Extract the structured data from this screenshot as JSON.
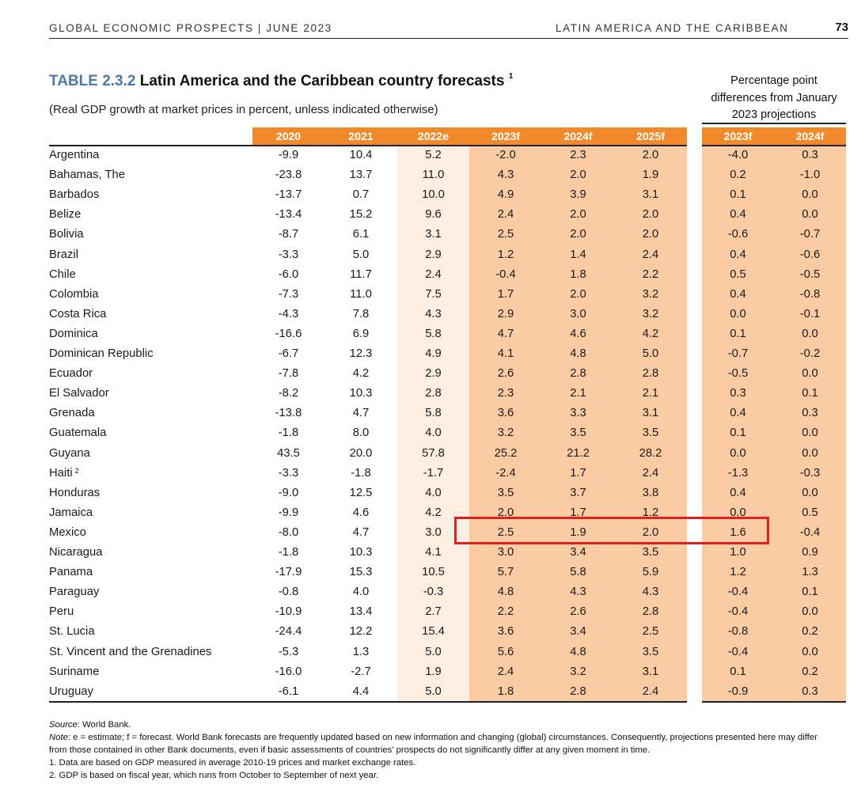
{
  "header": {
    "left": "GLOBAL ECONOMIC PROSPECTS | JUNE 2023",
    "right": "LATIN AMERICA AND THE CARIBBEAN",
    "page_number": "73"
  },
  "table": {
    "label": "TABLE 2.3.2",
    "title": "Latin America and the Caribbean country forecasts",
    "title_note": "1",
    "subtitle": "(Real GDP growth at market prices in percent, unless indicated otherwise)",
    "differences_heading": [
      "Percentage point",
      "differences from January",
      "2023 projections"
    ],
    "columns": [
      "2020",
      "2021",
      "2022e",
      "2023f",
      "2024f",
      "2025f"
    ],
    "diff_columns": [
      "2023f",
      "2024f"
    ],
    "rows": [
      {
        "country": "Argentina",
        "note": "",
        "values": [
          "-9.9",
          "10.4",
          "5.2",
          "-2.0",
          "2.3",
          "2.0"
        ],
        "diff": [
          "-4.0",
          "0.3"
        ]
      },
      {
        "country": "Bahamas, The",
        "note": "",
        "values": [
          "-23.8",
          "13.7",
          "11.0",
          "4.3",
          "2.0",
          "1.9"
        ],
        "diff": [
          "0.2",
          "-1.0"
        ]
      },
      {
        "country": "Barbados",
        "note": "",
        "values": [
          "-13.7",
          "0.7",
          "10.0",
          "4.9",
          "3.9",
          "3.1"
        ],
        "diff": [
          "0.1",
          "0.0"
        ]
      },
      {
        "country": "Belize",
        "note": "",
        "values": [
          "-13.4",
          "15.2",
          "9.6",
          "2.4",
          "2.0",
          "2.0"
        ],
        "diff": [
          "0.4",
          "0.0"
        ]
      },
      {
        "country": "Bolivia",
        "note": "",
        "values": [
          "-8.7",
          "6.1",
          "3.1",
          "2.5",
          "2.0",
          "2.0"
        ],
        "diff": [
          "-0.6",
          "-0.7"
        ]
      },
      {
        "country": "Brazil",
        "note": "",
        "values": [
          "-3.3",
          "5.0",
          "2.9",
          "1.2",
          "1.4",
          "2.4"
        ],
        "diff": [
          "0.4",
          "-0.6"
        ]
      },
      {
        "country": "Chile",
        "note": "",
        "values": [
          "-6.0",
          "11.7",
          "2.4",
          "-0.4",
          "1.8",
          "2.2"
        ],
        "diff": [
          "0.5",
          "-0.5"
        ]
      },
      {
        "country": "Colombia",
        "note": "",
        "values": [
          "-7.3",
          "11.0",
          "7.5",
          "1.7",
          "2.0",
          "3.2"
        ],
        "diff": [
          "0.4",
          "-0.8"
        ]
      },
      {
        "country": "Costa Rica",
        "note": "",
        "values": [
          "-4.3",
          "7.8",
          "4.3",
          "2.9",
          "3.0",
          "3.2"
        ],
        "diff": [
          "0.0",
          "-0.1"
        ]
      },
      {
        "country": "Dominica",
        "note": "",
        "values": [
          "-16.6",
          "6.9",
          "5.8",
          "4.7",
          "4.6",
          "4.2"
        ],
        "diff": [
          "0.1",
          "0.0"
        ]
      },
      {
        "country": "Dominican Republic",
        "note": "",
        "values": [
          "-6.7",
          "12.3",
          "4.9",
          "4.1",
          "4.8",
          "5.0"
        ],
        "diff": [
          "-0.7",
          "-0.2"
        ]
      },
      {
        "country": "Ecuador",
        "note": "",
        "values": [
          "-7.8",
          "4.2",
          "2.9",
          "2.6",
          "2.8",
          "2.8"
        ],
        "diff": [
          "-0.5",
          "0.0"
        ]
      },
      {
        "country": "El Salvador",
        "note": "",
        "values": [
          "-8.2",
          "10.3",
          "2.8",
          "2.3",
          "2.1",
          "2.1"
        ],
        "diff": [
          "0.3",
          "0.1"
        ]
      },
      {
        "country": "Grenada",
        "note": "",
        "values": [
          "-13.8",
          "4.7",
          "5.8",
          "3.6",
          "3.3",
          "3.1"
        ],
        "diff": [
          "0.4",
          "0.3"
        ]
      },
      {
        "country": "Guatemala",
        "note": "",
        "values": [
          "-1.8",
          "8.0",
          "4.0",
          "3.2",
          "3.5",
          "3.5"
        ],
        "diff": [
          "0.1",
          "0.0"
        ]
      },
      {
        "country": "Guyana",
        "note": "",
        "values": [
          "43.5",
          "20.0",
          "57.8",
          "25.2",
          "21.2",
          "28.2"
        ],
        "diff": [
          "0.0",
          "0.0"
        ]
      },
      {
        "country": "Haiti",
        "note": "2",
        "values": [
          "-3.3",
          "-1.8",
          "-1.7",
          "-2.4",
          "1.7",
          "2.4"
        ],
        "diff": [
          "-1.3",
          "-0.3"
        ]
      },
      {
        "country": "Honduras",
        "note": "",
        "values": [
          "-9.0",
          "12.5",
          "4.0",
          "3.5",
          "3.7",
          "3.8"
        ],
        "diff": [
          "0.4",
          "0.0"
        ]
      },
      {
        "country": "Jamaica",
        "note": "",
        "values": [
          "-9.9",
          "4.6",
          "4.2",
          "2.0",
          "1.7",
          "1.2"
        ],
        "diff": [
          "0.0",
          "0.5"
        ]
      },
      {
        "country": "Mexico",
        "note": "",
        "values": [
          "-8.0",
          "4.7",
          "3.0",
          "2.5",
          "1.9",
          "2.0"
        ],
        "diff": [
          "1.6",
          "-0.4"
        ]
      },
      {
        "country": "Nicaragua",
        "note": "",
        "values": [
          "-1.8",
          "10.3",
          "4.1",
          "3.0",
          "3.4",
          "3.5"
        ],
        "diff": [
          "1.0",
          "0.9"
        ]
      },
      {
        "country": "Panama",
        "note": "",
        "values": [
          "-17.9",
          "15.3",
          "10.5",
          "5.7",
          "5.8",
          "5.9"
        ],
        "diff": [
          "1.2",
          "1.3"
        ]
      },
      {
        "country": "Paraguay",
        "note": "",
        "values": [
          "-0.8",
          "4.0",
          "-0.3",
          "4.8",
          "4.3",
          "4.3"
        ],
        "diff": [
          "-0.4",
          "0.1"
        ]
      },
      {
        "country": "Peru",
        "note": "",
        "values": [
          "-10.9",
          "13.4",
          "2.7",
          "2.2",
          "2.6",
          "2.8"
        ],
        "diff": [
          "-0.4",
          "0.0"
        ]
      },
      {
        "country": "St. Lucia",
        "note": "",
        "values": [
          "-24.4",
          "12.2",
          "15.4",
          "3.6",
          "3.4",
          "2.5"
        ],
        "diff": [
          "-0.8",
          "0.2"
        ]
      },
      {
        "country": "St. Vincent and the Grenadines",
        "note": "",
        "values": [
          "-5.3",
          "1.3",
          "5.0",
          "5.6",
          "4.8",
          "3.5"
        ],
        "diff": [
          "-0.4",
          "0.0"
        ]
      },
      {
        "country": "Suriname",
        "note": "",
        "values": [
          "-16.0",
          "-2.7",
          "1.9",
          "2.4",
          "3.2",
          "3.1"
        ],
        "diff": [
          "0.1",
          "0.2"
        ]
      },
      {
        "country": "Uruguay",
        "note": "",
        "values": [
          "-6.1",
          "4.4",
          "5.0",
          "1.8",
          "2.8",
          "2.4"
        ],
        "diff": [
          "-0.9",
          "0.3"
        ]
      }
    ]
  },
  "notes": {
    "source_label": "Source",
    "source_text": ": World Bank.",
    "note_label": "Note",
    "note_text": ": e = estimate; f = forecast. World Bank forecasts are frequently updated based on new information and changing (global) circumstances. Consequently, projections presented here may differ from those contained in other Bank documents, even if basic assessments of countries' prospects do not significantly differ at any given moment in time.",
    "footnote_1": "1. Data are based on GDP measured in average 2010-19 prices and market exchange rates.",
    "footnote_2": "2. GDP is based on fiscal year, which runs from October to September of next year."
  },
  "colors": {
    "header_orange": "#f28a2b",
    "estimate_shade": "#fdeee1",
    "forecast_shade": "#fbcca4",
    "title_label_blue": "#4a7aa5",
    "highlight_red": "#e02020"
  }
}
